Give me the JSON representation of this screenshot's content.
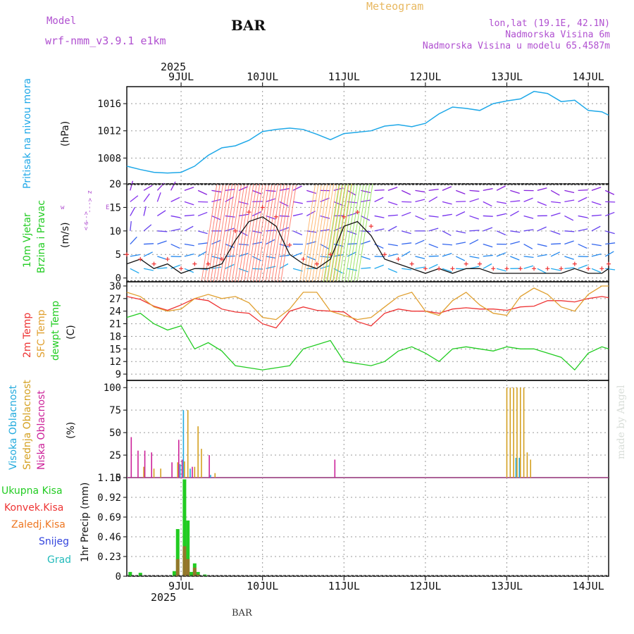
{
  "header": {
    "model_label": "Model",
    "model_name": "wrf-nmm_v3.9.1  e1km",
    "station": "BAR",
    "product": "Meteogram",
    "coords": "lon,lat (19.1E, 42.1N)",
    "elevation": "Nadmorska Visina 6m",
    "model_elevation": "Nadmorska Visina u modelu 65.4587m",
    "footer_station": "BAR",
    "watermark": "made by Angel"
  },
  "time_axis": {
    "year": "2025",
    "day_labels": [
      "9JUL",
      "10JUL",
      "11JUL",
      "12JUL",
      "13JUL",
      "14JUL"
    ],
    "range_hours": [
      -16,
      126
    ]
  },
  "colors": {
    "pressure": "#1ea8e8",
    "temp2m": "#ee3333",
    "sfc": "#e0a030",
    "dewpt": "#22cc22",
    "high_cloud": "#22aadd",
    "mid_cloud": "#d4a020",
    "low_cloud": "#cc2299",
    "total_precip": "#22cc22",
    "conv_precip": "#ee3333",
    "frozen": "#ee7722",
    "snow": "#3344dd",
    "graupel": "#22bbbb",
    "wind_speed": "#111111",
    "gust": "#ee3333",
    "label_purple": "#b050d0",
    "label_gold": "#e8b860"
  },
  "chart_data": [
    {
      "type": "line",
      "panel": "pressure",
      "ylabel": "(hPa)",
      "side_labels": [
        "Pritisak na nivou mora"
      ],
      "ylim": [
        1004.2,
        1018.5
      ],
      "yticks": [
        "1008",
        "1012",
        "1016"
      ],
      "grid": true,
      "x": [
        -16,
        -12,
        -8,
        -4,
        0,
        4,
        8,
        12,
        16,
        20,
        24,
        28,
        32,
        36,
        40,
        44,
        48,
        52,
        56,
        60,
        64,
        68,
        72,
        76,
        80,
        84,
        88,
        92,
        96,
        100,
        104,
        108,
        112,
        116,
        120,
        124,
        126
      ],
      "series": [
        {
          "values": [
            1006.8,
            1006.3,
            1005.9,
            1005.8,
            1005.9,
            1006.8,
            1008.4,
            1009.5,
            1009.8,
            1010.6,
            1011.9,
            1012.2,
            1012.4,
            1012.2,
            1011.5,
            1010.7,
            1011.6,
            1011.8,
            1012.0,
            1012.7,
            1012.9,
            1012.6,
            1013.1,
            1014.5,
            1015.5,
            1015.3,
            1015.0,
            1016.0,
            1016.4,
            1016.7,
            1017.8,
            1017.5,
            1016.3,
            1016.5,
            1015.0,
            1014.8,
            1014.3
          ]
        }
      ]
    },
    {
      "type": "line",
      "panel": "wind",
      "ylabel": "(m/s)",
      "side_labels": [
        "10m Vjetar",
        "Brzina i Pravac"
      ],
      "compass_labels": [
        "z",
        "<---",
        "w",
        "E",
        "<--->",
        "s"
      ],
      "ylim": [
        -0.8,
        20
      ],
      "yticks": [
        "0",
        "5",
        "10",
        "15",
        "20"
      ],
      "grid": true,
      "x": [
        -16,
        -12,
        -8,
        -4,
        0,
        4,
        8,
        12,
        16,
        20,
        24,
        28,
        32,
        36,
        40,
        44,
        48,
        52,
        56,
        60,
        64,
        68,
        72,
        76,
        80,
        84,
        88,
        92,
        96,
        100,
        104,
        108,
        112,
        116,
        120,
        124,
        126
      ],
      "series": [
        {
          "values": [
            3,
            4,
            2,
            3,
            1,
            2,
            2,
            3,
            8,
            12,
            13,
            11,
            5,
            3,
            2,
            4,
            11,
            12,
            9,
            4,
            3,
            2,
            1,
            2,
            1,
            2,
            2,
            1,
            1,
            1,
            1,
            1,
            1,
            2,
            1,
            1,
            2
          ]
        },
        {
          "values": [
            5,
            4,
            3,
            4,
            2,
            3,
            3,
            4,
            10,
            14,
            15,
            13,
            7,
            4,
            3,
            5,
            13,
            14,
            11,
            5,
            4,
            3,
            2,
            2,
            2,
            3,
            3,
            2,
            2,
            2,
            2,
            2,
            2,
            3,
            2,
            2,
            3
          ]
        }
      ]
    },
    {
      "type": "line",
      "panel": "temperature",
      "ylabel": "(C)",
      "side_labels": [
        "2m Temp",
        "SFC Temp",
        "dewpt Temp"
      ],
      "ylim": [
        7.5,
        31
      ],
      "yticks": [
        "9",
        "12",
        "15",
        "18",
        "21",
        "24",
        "27",
        "30"
      ],
      "grid": true,
      "x": [
        -16,
        -12,
        -8,
        -4,
        0,
        4,
        8,
        12,
        16,
        20,
        24,
        28,
        32,
        36,
        40,
        44,
        48,
        52,
        56,
        60,
        64,
        68,
        72,
        76,
        80,
        84,
        88,
        92,
        96,
        100,
        104,
        108,
        112,
        116,
        120,
        124,
        126
      ],
      "series": [
        {
          "name": "2m Temp",
          "values": [
            27.5,
            26.8,
            25.2,
            24.2,
            25.5,
            27.0,
            26.5,
            24.5,
            23.8,
            23.5,
            21.0,
            20.0,
            24.0,
            25.0,
            24.2,
            24.0,
            23.8,
            21.5,
            20.5,
            23.5,
            24.5,
            24.0,
            24.0,
            23.5,
            24.5,
            24.8,
            24.5,
            24.5,
            24.2,
            25.0,
            25.2,
            26.5,
            26.5,
            26.2,
            27.0,
            27.5,
            27.2
          ]
        },
        {
          "name": "SFC Temp",
          "values": [
            28.5,
            27.5,
            25.0,
            24.0,
            24.5,
            27.0,
            28.0,
            27.0,
            27.5,
            26.0,
            22.5,
            22.0,
            24.5,
            28.5,
            28.5,
            24.0,
            23.0,
            22.0,
            22.5,
            25.0,
            27.5,
            28.5,
            24.0,
            23.0,
            26.5,
            28.5,
            25.5,
            23.5,
            23.0,
            27.5,
            29.5,
            28.0,
            25.0,
            24.0,
            28.0,
            30.0,
            30.0
          ]
        },
        {
          "name": "dewpt Temp",
          "values": [
            22.5,
            23.5,
            21.0,
            19.5,
            20.5,
            15.0,
            16.5,
            14.5,
            11.0,
            10.5,
            10.0,
            10.5,
            11.0,
            15.0,
            16.0,
            17.0,
            12.0,
            11.5,
            11.0,
            12.0,
            14.5,
            15.5,
            14.0,
            12.0,
            15.0,
            15.5,
            15.0,
            14.5,
            15.5,
            15.0,
            15.0,
            14.0,
            13.0,
            10.0,
            14.0,
            15.5,
            15.0
          ]
        }
      ]
    },
    {
      "type": "bar",
      "panel": "clouds",
      "ylabel": "(%)",
      "side_labels": [
        "Visoka Oblacnost",
        "Srednja Oblacnost",
        "Niska Oblacnost"
      ],
      "ylim": [
        0,
        108
      ],
      "yticks": [
        "0",
        "25",
        "50",
        "75",
        "100"
      ],
      "grid": true,
      "series": [
        {
          "name": "Visoka Oblacnost",
          "x": [
            0,
            1,
            3,
            9,
            99,
            100
          ],
          "values": [
            15,
            75,
            10,
            3,
            22,
            22
          ]
        },
        {
          "name": "Srednja Oblacnost",
          "x": [
            -11,
            -8,
            -6,
            -1,
            1,
            2,
            4,
            5,
            6,
            10,
            96,
            97,
            98,
            99,
            100,
            101,
            102,
            103
          ],
          "values": [
            12,
            10,
            10,
            17,
            18,
            75,
            12,
            57,
            32,
            5,
            100,
            100,
            100,
            100,
            100,
            100,
            28,
            20
          ]
        },
        {
          "name": "Niska Oblacnost",
          "x": [
            -15,
            -13,
            -11,
            -9,
            -3,
            -1,
            0,
            3,
            8,
            45
          ],
          "values": [
            45,
            30,
            30,
            28,
            17,
            42,
            20,
            12,
            25,
            20
          ]
        }
      ]
    },
    {
      "type": "bar",
      "panel": "precip",
      "ylabel": "1hr Precip (mm)",
      "side_labels": [
        "Ukupna Kisa",
        "Konvek.Kisa",
        "Zaledj.Kisa",
        "Snijeg",
        "Grad"
      ],
      "ylim": [
        0,
        1.15
      ],
      "yticks": [
        "0",
        "0.23",
        "0.46",
        "0.69",
        "0.92",
        "1.15"
      ],
      "grid": true,
      "series": [
        {
          "name": "Ukupna Kisa",
          "x": [
            -15,
            -12,
            -2,
            -1,
            1,
            2,
            3,
            4,
            5,
            7
          ],
          "values": [
            0.05,
            0.04,
            0.06,
            0.55,
            1.13,
            0.65,
            0.05,
            0.15,
            0.05,
            0.02
          ]
        },
        {
          "name": "Konvek.Kisa",
          "x": [
            -1,
            1,
            2,
            4,
            5
          ],
          "values": [
            0.2,
            0.35,
            0.2,
            0.1,
            0.02
          ]
        }
      ]
    }
  ]
}
